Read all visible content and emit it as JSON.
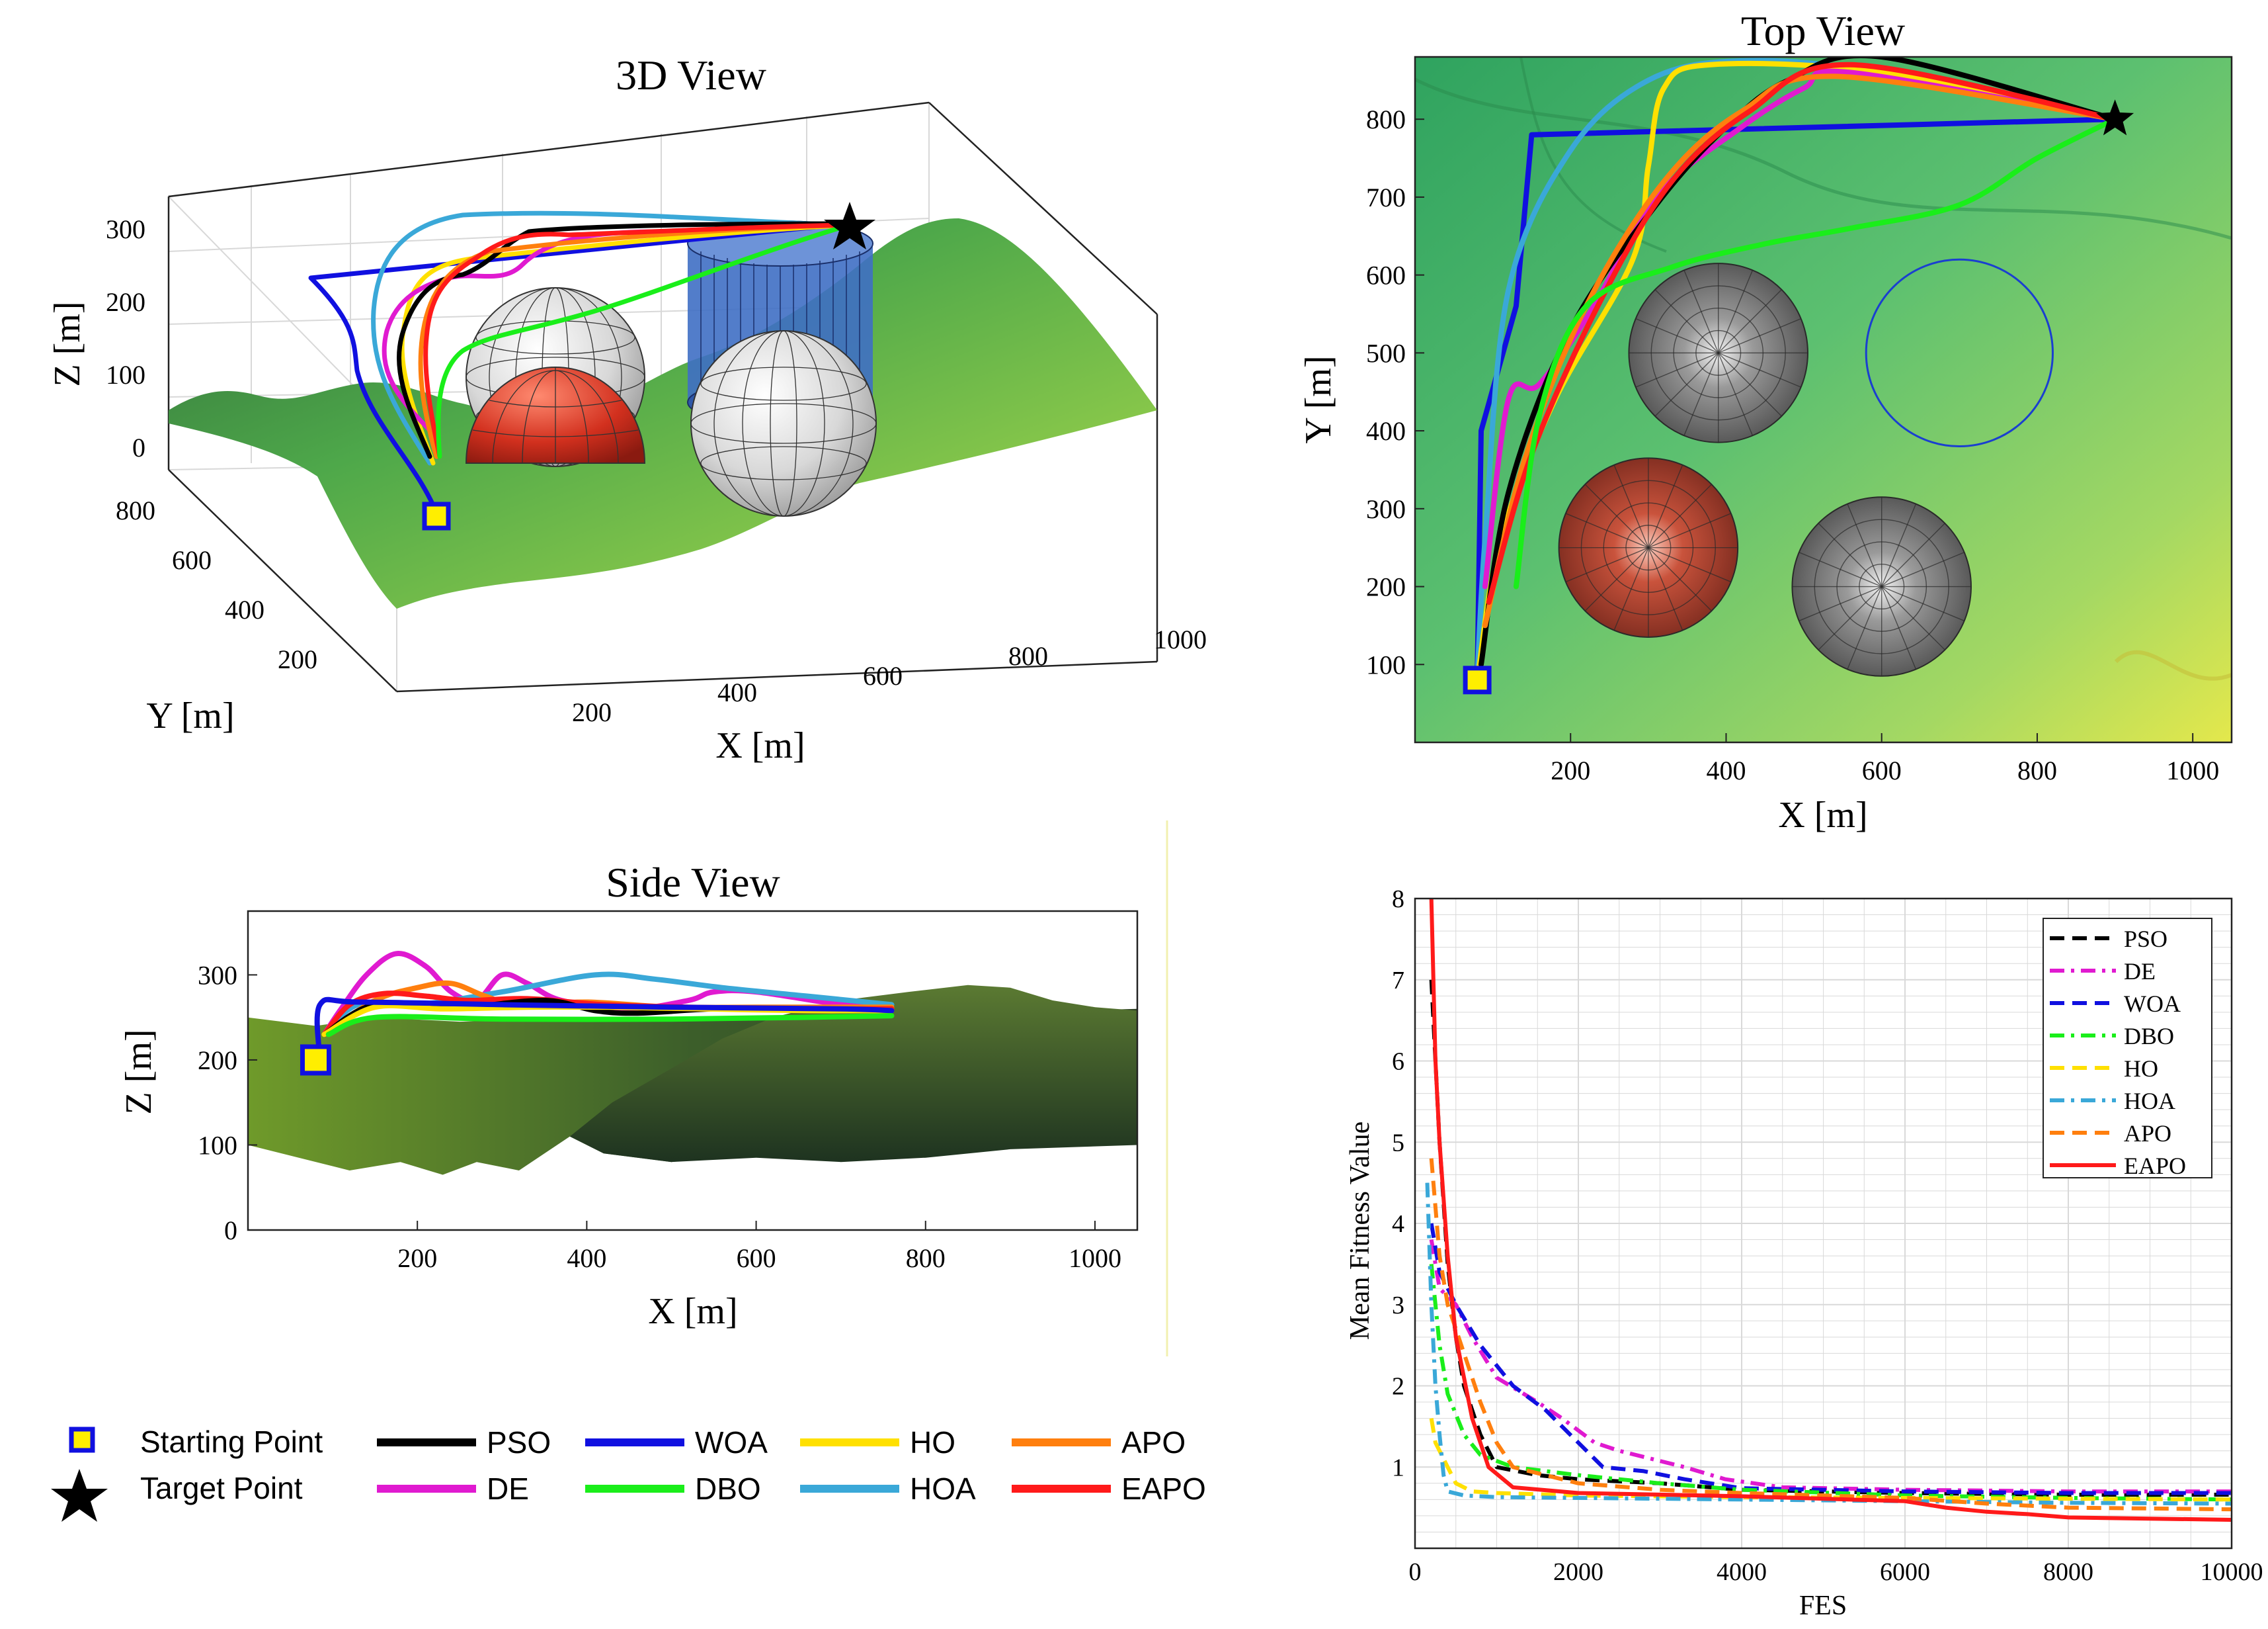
{
  "colors": {
    "PSO": "#000000",
    "DE": "#e01ad0",
    "WOA": "#1010e0",
    "DBO": "#1aee1a",
    "HO": "#ffe000",
    "HOA": "#3aa8d8",
    "APO": "#ff7f0e",
    "EAPO": "#ff1a1a"
  },
  "legend": {
    "starting_point": "Starting Point",
    "target_point": "Target Point",
    "algorithms": [
      "PSO",
      "WOA",
      "HO",
      "APO",
      "DE",
      "DBO",
      "HOA",
      "EAPO"
    ]
  },
  "chart_data": [
    {
      "type": "scatter",
      "title": "3D View",
      "xlabel": "X [m]",
      "ylabel": "Y [m]",
      "zlabel": "Z [m]",
      "x_ticks": [
        "200",
        "400",
        "600",
        "800",
        "1000"
      ],
      "y_ticks": [
        "200",
        "400",
        "600",
        "800"
      ],
      "z_ticks": [
        "0",
        "100",
        "200",
        "300"
      ],
      "xlim": [
        0,
        1000
      ],
      "ylim": [
        0,
        900
      ],
      "zlim": [
        0,
        350
      ],
      "start": {
        "x": 80,
        "y": 80,
        "z": 200
      },
      "target": {
        "x": 900,
        "y": 800,
        "z": 260
      },
      "obstacles": [
        {
          "kind": "sphere",
          "color": "red",
          "x": 300,
          "y": 250
        },
        {
          "kind": "sphere",
          "color": "gray",
          "x": 400,
          "y": 500
        },
        {
          "kind": "sphere",
          "color": "gray",
          "x": 600,
          "y": 200
        },
        {
          "kind": "cylinder",
          "color": "blue",
          "x": 700,
          "y": 500
        }
      ]
    },
    {
      "type": "line",
      "title": "Top View",
      "xlabel": "X [m]",
      "ylabel": "Y [m]",
      "x_ticks": [
        "200",
        "400",
        "600",
        "800",
        "1000"
      ],
      "y_ticks": [
        "100",
        "200",
        "300",
        "400",
        "500",
        "600",
        "700",
        "800"
      ],
      "xlim": [
        0,
        1050
      ],
      "ylim": [
        0,
        880
      ],
      "start": {
        "x": 80,
        "y": 80
      },
      "target": {
        "x": 900,
        "y": 800
      },
      "obstacles": [
        {
          "kind": "sphere",
          "color": "gray",
          "x": 390,
          "y": 500,
          "r": 115
        },
        {
          "kind": "sphere",
          "color": "red",
          "x": 300,
          "y": 250,
          "r": 115
        },
        {
          "kind": "sphere",
          "color": "gray",
          "x": 600,
          "y": 200,
          "r": 115
        },
        {
          "kind": "cylinder",
          "color": "blue",
          "x": 700,
          "y": 500,
          "r": 120
        }
      ],
      "paths": [
        {
          "name": "WOA",
          "points": [
            [
              80,
              80
            ],
            [
              85,
              400
            ],
            [
              130,
              560
            ],
            [
              150,
              780
            ],
            [
              900,
              800
            ]
          ]
        },
        {
          "name": "HOA",
          "points": [
            [
              80,
              80
            ],
            [
              90,
              260
            ],
            [
              120,
              580
            ],
            [
              200,
              760
            ],
            [
              300,
              850
            ],
            [
              420,
              875
            ],
            [
              600,
              860
            ],
            [
              900,
              800
            ]
          ]
        },
        {
          "name": "HO",
          "points": [
            [
              80,
              80
            ],
            [
              110,
              260
            ],
            [
              180,
              440
            ],
            [
              280,
              620
            ],
            [
              300,
              740
            ],
            [
              320,
              840
            ],
            [
              380,
              870
            ],
            [
              600,
              860
            ],
            [
              900,
              800
            ]
          ]
        },
        {
          "name": "DE",
          "points": [
            [
              90,
              200
            ],
            [
              120,
              440
            ],
            [
              160,
              460
            ],
            [
              230,
              560
            ],
            [
              310,
              700
            ],
            [
              420,
              790
            ],
            [
              500,
              840
            ],
            [
              560,
              860
            ],
            [
              900,
              800
            ]
          ]
        },
        {
          "name": "PSO",
          "points": [
            [
              85,
              100
            ],
            [
              120,
              320
            ],
            [
              200,
              530
            ],
            [
              310,
              690
            ],
            [
              400,
              790
            ],
            [
              480,
              850
            ],
            [
              600,
              880
            ],
            [
              900,
              800
            ]
          ]
        },
        {
          "name": "APO",
          "points": [
            [
              90,
              150
            ],
            [
              140,
              360
            ],
            [
              220,
              560
            ],
            [
              320,
              720
            ],
            [
              420,
              810
            ],
            [
              540,
              855
            ],
            [
              900,
              800
            ]
          ]
        },
        {
          "name": "EAPO",
          "points": [
            [
              95,
              180
            ],
            [
              150,
              370
            ],
            [
              240,
              570
            ],
            [
              330,
              720
            ],
            [
              430,
              810
            ],
            [
              560,
              870
            ],
            [
              900,
              800
            ]
          ]
        },
        {
          "name": "DBO",
          "points": [
            [
              130,
              200
            ],
            [
              160,
              420
            ],
            [
              220,
              560
            ],
            [
              330,
              610
            ],
            [
              450,
              640
            ],
            [
              560,
              660
            ],
            [
              700,
              690
            ],
            [
              800,
              750
            ],
            [
              900,
              800
            ]
          ]
        }
      ]
    },
    {
      "type": "line",
      "title": "Side View",
      "xlabel": "X [m]",
      "ylabel": "Z [m]",
      "x_ticks": [
        "200",
        "400",
        "600",
        "800",
        "1000"
      ],
      "y_ticks": [
        "0",
        "100",
        "200",
        "300"
      ],
      "xlim": [
        0,
        1050
      ],
      "ylim": [
        0,
        375
      ],
      "start": {
        "x": 80,
        "z": 200
      },
      "paths": [
        {
          "name": "DE",
          "points": [
            [
              90,
              230
            ],
            [
              110,
              260
            ],
            [
              140,
              300
            ],
            [
              175,
              325
            ],
            [
              210,
              310
            ],
            [
              240,
              280
            ],
            [
              270,
              270
            ],
            [
              300,
              300
            ],
            [
              330,
              290
            ],
            [
              370,
              270
            ],
            [
              450,
              260
            ],
            [
              520,
              270
            ],
            [
              550,
              280
            ],
            [
              600,
              280
            ],
            [
              700,
              265
            ],
            [
              760,
              260
            ]
          ]
        },
        {
          "name": "HOA",
          "points": [
            [
              90,
              230
            ],
            [
              130,
              265
            ],
            [
              200,
              265
            ],
            [
              300,
              280
            ],
            [
              410,
              300
            ],
            [
              480,
              295
            ],
            [
              560,
              285
            ],
            [
              660,
              275
            ],
            [
              760,
              265
            ]
          ]
        },
        {
          "name": "APO",
          "points": [
            [
              90,
              230
            ],
            [
              150,
              270
            ],
            [
              200,
              285
            ],
            [
              240,
              290
            ],
            [
              280,
              275
            ],
            [
              320,
              265
            ],
            [
              400,
              268
            ],
            [
              500,
              262
            ],
            [
              600,
              262
            ],
            [
              760,
              262
            ]
          ]
        },
        {
          "name": "EAPO",
          "points": [
            [
              90,
              230
            ],
            [
              120,
              265
            ],
            [
              160,
              278
            ],
            [
              210,
              275
            ],
            [
              260,
              270
            ],
            [
              330,
              272
            ],
            [
              420,
              265
            ],
            [
              520,
              262
            ],
            [
              640,
              260
            ],
            [
              760,
              260
            ]
          ]
        },
        {
          "name": "PSO",
          "points": [
            [
              90,
              230
            ],
            [
              150,
              265
            ],
            [
              250,
              262
            ],
            [
              350,
              270
            ],
            [
              410,
              258
            ],
            [
              460,
              255
            ],
            [
              550,
              260
            ],
            [
              650,
              260
            ],
            [
              760,
              258
            ]
          ]
        },
        {
          "name": "HO",
          "points": [
            [
              90,
              230
            ],
            [
              150,
              262
            ],
            [
              230,
              260
            ],
            [
              330,
              262
            ],
            [
              430,
              262
            ],
            [
              540,
              260
            ],
            [
              660,
              258
            ],
            [
              760,
              258
            ]
          ]
        },
        {
          "name": "WOA",
          "points": [
            [
              85,
              200
            ],
            [
              85,
              265
            ],
            [
              130,
              268
            ],
            [
              300,
              265
            ],
            [
              500,
              262
            ],
            [
              700,
              260
            ],
            [
              760,
              258
            ]
          ]
        },
        {
          "name": "DBO",
          "points": [
            [
              95,
              230
            ],
            [
              150,
              250
            ],
            [
              300,
              248
            ],
            [
              500,
              248
            ],
            [
              650,
              250
            ],
            [
              760,
              252
            ]
          ]
        }
      ]
    },
    {
      "type": "line",
      "xlabel": "FES",
      "ylabel": "Mean Fitness Value",
      "xlim": [
        0,
        10000
      ],
      "ylim": [
        0,
        8
      ],
      "x_ticks": [
        "0",
        "2000",
        "4000",
        "6000",
        "8000",
        "10000"
      ],
      "y_ticks": [
        "1",
        "2",
        "3",
        "4",
        "5",
        "6",
        "7",
        "8"
      ],
      "series": [
        {
          "name": "PSO",
          "x": [
            200,
            300,
            400,
            500,
            600,
            800,
            1000,
            1500,
            2000,
            3000,
            4000,
            6000,
            8000,
            10000
          ],
          "values": [
            7.0,
            5.0,
            3.5,
            2.6,
            2.0,
            1.4,
            1.0,
            0.9,
            0.85,
            0.8,
            0.72,
            0.68,
            0.66,
            0.66
          ]
        },
        {
          "name": "DE",
          "x": [
            200,
            300,
            500,
            700,
            1000,
            1500,
            1800,
            2200,
            2500,
            2900,
            3300,
            3800,
            4500,
            6000,
            8000,
            10000
          ],
          "values": [
            3.8,
            3.2,
            3.0,
            2.6,
            2.1,
            1.8,
            1.6,
            1.3,
            1.2,
            1.1,
            1.0,
            0.85,
            0.75,
            0.72,
            0.7,
            0.7
          ]
        },
        {
          "name": "WOA",
          "x": [
            200,
            300,
            500,
            800,
            1200,
            1600,
            1900,
            2300,
            2800,
            3300,
            4000,
            6000,
            8000,
            10000
          ],
          "values": [
            4.0,
            3.4,
            3.0,
            2.5,
            2.0,
            1.7,
            1.4,
            1.0,
            0.95,
            0.85,
            0.74,
            0.7,
            0.68,
            0.68
          ]
        },
        {
          "name": "DBO",
          "x": [
            200,
            300,
            400,
            600,
            800,
            1200,
            2000,
            3000,
            4000,
            6000,
            8000,
            10000
          ],
          "values": [
            3.5,
            2.5,
            1.9,
            1.4,
            1.15,
            1.0,
            0.9,
            0.8,
            0.72,
            0.65,
            0.62,
            0.6
          ]
        },
        {
          "name": "HO",
          "x": [
            200,
            250,
            300,
            400,
            500,
            700,
            1000,
            2000,
            4000,
            6000,
            8000,
            10000
          ],
          "values": [
            1.6,
            1.3,
            1.2,
            1.0,
            0.8,
            0.7,
            0.68,
            0.65,
            0.63,
            0.62,
            0.61,
            0.6
          ]
        },
        {
          "name": "HOA",
          "x": [
            150,
            200,
            250,
            300,
            350,
            400,
            600,
            1000,
            2000,
            4000,
            6000,
            8000,
            10000
          ],
          "values": [
            4.5,
            3.0,
            2.0,
            1.4,
            0.9,
            0.7,
            0.65,
            0.63,
            0.62,
            0.6,
            0.58,
            0.56,
            0.55
          ]
        },
        {
          "name": "APO",
          "x": [
            200,
            300,
            400,
            600,
            800,
            1000,
            1200,
            2000,
            3000,
            4000,
            6000,
            7000,
            8000,
            10000
          ],
          "values": [
            4.8,
            3.6,
            3.0,
            2.4,
            1.8,
            1.3,
            1.0,
            0.8,
            0.72,
            0.68,
            0.62,
            0.55,
            0.5,
            0.48
          ]
        },
        {
          "name": "EAPO",
          "x": [
            200,
            250,
            300,
            400,
            500,
            700,
            900,
            1200,
            2000,
            4000,
            6000,
            6500,
            7000,
            7500,
            8000,
            10000
          ],
          "values": [
            8.0,
            6.0,
            5.0,
            3.6,
            2.6,
            1.6,
            1.0,
            0.75,
            0.68,
            0.64,
            0.58,
            0.5,
            0.45,
            0.42,
            0.38,
            0.35
          ]
        }
      ],
      "legend": [
        "PSO",
        "DE",
        "WOA",
        "DBO",
        "HO",
        "HOA",
        "APO",
        "EAPO"
      ]
    }
  ]
}
